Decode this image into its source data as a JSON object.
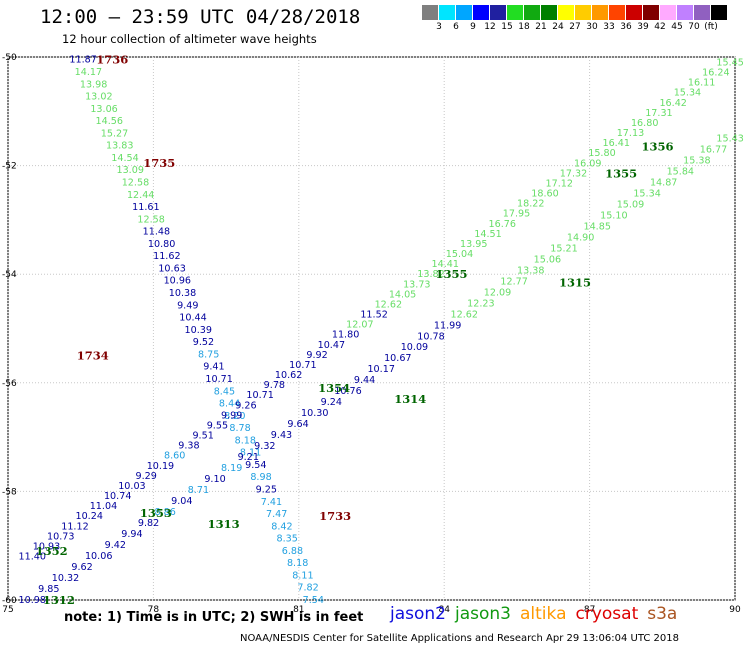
{
  "header": {
    "title": "12:00 — 23:59 UTC 04/28/2018",
    "subtitle": "12 hour collection of altimeter wave heights"
  },
  "legend": {
    "colors": [
      "#7f7f7f",
      "#00e5ff",
      "#00a6ff",
      "#0000ff",
      "#2020a0",
      "#22dd22",
      "#11aa11",
      "#008000",
      "#ffff00",
      "#ffcc00",
      "#ff9900",
      "#ff4400",
      "#cc0000",
      "#800000",
      "#ffaaff",
      "#c080ff",
      "#9060c0",
      "#000000"
    ],
    "labels": [
      "3",
      "6",
      "9",
      "12",
      "15",
      "18",
      "21",
      "24",
      "27",
      "30",
      "33",
      "36",
      "39",
      "42",
      "45",
      "70",
      "(ft)"
    ]
  },
  "axes": {
    "lon_ticks": [
      "75",
      "78",
      "81",
      "84",
      "87",
      "90"
    ],
    "lat_ticks": [
      "-50",
      "-52",
      "-54",
      "-56",
      "-58",
      "-60"
    ],
    "lon_range": [
      75,
      90
    ],
    "lat_range": [
      -60,
      -50
    ]
  },
  "obs_colors": {
    "lo": "#22a0e0",
    "mid": "#00009c",
    "hi": "#66dd66"
  },
  "tracks": [
    {
      "name": "desc-1736",
      "lon": [
        76.55,
        81.3
      ],
      "lat": [
        -50.05,
        -60.0
      ],
      "values": [
        "11.87",
        "14.17",
        "13.98",
        "13.02",
        "13.06",
        "14.56",
        "15.27",
        "13.83",
        "14.54",
        "13.09",
        "12.58",
        "12.44",
        "11.61",
        "12.58",
        "11.48",
        "10.80",
        "11.62",
        "10.63",
        "10.96",
        "10.38",
        "9.49",
        "10.44",
        "10.39",
        "9.52",
        "8.75",
        "9.41",
        "10.71",
        "8.45",
        "8.44",
        "8.20",
        "8.78",
        "8.18",
        "8.11",
        "9.54",
        "8.98",
        "9.25",
        "7.41",
        "7.47",
        "8.42",
        "8.35",
        "6.88",
        "8.18",
        "8.11",
        "7.82",
        "7.54"
      ]
    },
    {
      "name": "asc-1354",
      "lon": [
        75.5,
        89.9
      ],
      "lat": [
        -59.2,
        -50.1
      ],
      "values": [
        "11.40",
        "10.93",
        "10.73",
        "11.12",
        "10.24",
        "11.04",
        "10.74",
        "10.03",
        "9.29",
        "10.19",
        "8.60",
        "9.38",
        "9.51",
        "9.55",
        "9.99",
        "9.26",
        "10.71",
        "9.78",
        "10.62",
        "10.71",
        "9.92",
        "10.47",
        "11.80",
        "12.07",
        "11.52",
        "12.62",
        "14.05",
        "13.73",
        "13.82",
        "14.41",
        "15.04",
        "13.95",
        "14.51",
        "16.76",
        "17.95",
        "18.22",
        "18.60",
        "17.12",
        "17.32",
        "16.09",
        "15.80",
        "16.41",
        "17.13",
        "16.80",
        "17.31",
        "16.42",
        "15.34",
        "16.11",
        "16.24",
        "15.45"
      ]
    },
    {
      "name": "asc-1314",
      "lon": [
        75.5,
        89.9
      ],
      "lat": [
        -60.0,
        -51.5
      ],
      "values": [
        "10.98",
        "9.85",
        "10.32",
        "9.62",
        "10.06",
        "9.42",
        "9.94",
        "9.82",
        "8.86",
        "9.04",
        "8.71",
        "9.10",
        "8.19",
        "9.21",
        "9.32",
        "9.43",
        "9.64",
        "10.30",
        "9.24",
        "10.76",
        "9.44",
        "10.17",
        "10.67",
        "10.09",
        "10.78",
        "11.99",
        "12.62",
        "12.23",
        "12.09",
        "12.77",
        "13.38",
        "15.06",
        "15.21",
        "14.90",
        "14.85",
        "15.10",
        "15.09",
        "15.34",
        "14.87",
        "15.84",
        "15.38",
        "16.77",
        "15.43"
      ]
    }
  ],
  "pass_labels": [
    {
      "text": "1736",
      "lon": 77.15,
      "lat": -50.05,
      "color": "#800000"
    },
    {
      "text": "1735",
      "lon": 78.12,
      "lat": -51.95,
      "color": "#800000"
    },
    {
      "text": "1734",
      "lon": 76.75,
      "lat": -55.5,
      "color": "#800000"
    },
    {
      "text": "1733",
      "lon": 81.75,
      "lat": -58.45,
      "color": "#800000"
    },
    {
      "text": "1354",
      "lon": 81.73,
      "lat": -56.1,
      "color": "#006400"
    },
    {
      "text": "1314",
      "lon": 83.3,
      "lat": -56.3,
      "color": "#006400"
    },
    {
      "text": "1355",
      "lon": 84.15,
      "lat": -54.0,
      "color": "#006400"
    },
    {
      "text": "1315",
      "lon": 86.7,
      "lat": -54.15,
      "color": "#006400"
    },
    {
      "text": "1355",
      "lon": 87.65,
      "lat": -52.15,
      "color": "#006400"
    },
    {
      "text": "1356",
      "lon": 88.4,
      "lat": -51.65,
      "color": "#006400"
    },
    {
      "text": "1353",
      "lon": 78.05,
      "lat": -58.4,
      "color": "#006400"
    },
    {
      "text": "1313",
      "lon": 79.45,
      "lat": -58.6,
      "color": "#006400"
    },
    {
      "text": "1352",
      "lon": 75.9,
      "lat": -59.1,
      "color": "#006400"
    },
    {
      "text": "1312",
      "lon": 76.05,
      "lat": -60.0,
      "color": "#006400"
    }
  ],
  "bottom": {
    "note": "note: 1) Time is in UTC; 2) SWH is in feet",
    "satellites": [
      {
        "name": "jason2",
        "color": "#1010dd"
      },
      {
        "name": "jason3",
        "color": "#119911"
      },
      {
        "name": "altika",
        "color": "#ff9900"
      },
      {
        "name": "cryosat",
        "color": "#dd0000"
      },
      {
        "name": "s3a",
        "color": "#aa5522"
      }
    ],
    "footer": "NOAA/NESDIS Center for Satellite Applications and Research    Apr 29 13:06:04 UTC 2018"
  }
}
